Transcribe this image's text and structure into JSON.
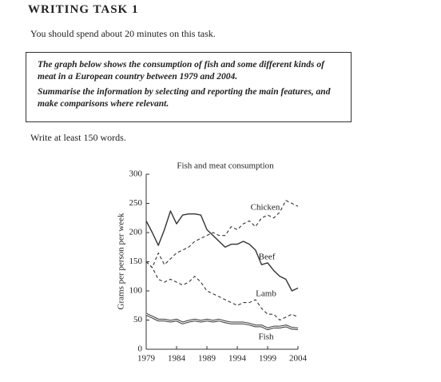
{
  "header": {
    "title": "WRITING TASK 1",
    "instruction": "You should spend about 20 minutes on this task."
  },
  "task": {
    "description": "The graph below shows the consumption of fish and some different kinds of meat in a European country between 1979 and 2004.",
    "instruction": "Summarise the information by selecting and reporting the main features, and make comparisons where relevant."
  },
  "footer": "Write at least 150 words.",
  "chart_data": {
    "type": "line",
    "title": "Fish and meat consumption",
    "y_label": "Grams per person per week",
    "x": [
      1979,
      1980,
      1981,
      1982,
      1983,
      1984,
      1985,
      1986,
      1987,
      1988,
      1989,
      1990,
      1991,
      1992,
      1993,
      1994,
      1995,
      1996,
      1997,
      1998,
      1999,
      2000,
      2001,
      2002,
      2003,
      2004
    ],
    "xlim": [
      1979,
      2004
    ],
    "xticks": [
      1979,
      1984,
      1989,
      1994,
      1999,
      2004
    ],
    "ylim": [
      0,
      300
    ],
    "yticks": [
      0,
      50,
      100,
      150,
      200,
      250,
      300
    ],
    "series": [
      {
        "name": "Chicken",
        "color": "#333333",
        "style": "dashed",
        "values": [
          150,
          140,
          165,
          145,
          155,
          165,
          170,
          175,
          185,
          190,
          195,
          200,
          195,
          195,
          210,
          205,
          215,
          220,
          210,
          225,
          230,
          225,
          235,
          255,
          250,
          245
        ]
      },
      {
        "name": "Beef",
        "color": "#333333",
        "style": "solid",
        "values": [
          220,
          200,
          178,
          205,
          237,
          215,
          230,
          232,
          232,
          230,
          205,
          195,
          185,
          175,
          180,
          180,
          185,
          180,
          170,
          145,
          148,
          135,
          125,
          120,
          100,
          105
        ]
      },
      {
        "name": "Lamb",
        "color": "#333333",
        "style": "dashed",
        "values": [
          150,
          140,
          120,
          115,
          120,
          115,
          110,
          115,
          125,
          115,
          100,
          95,
          90,
          85,
          80,
          75,
          80,
          80,
          85,
          70,
          60,
          60,
          50,
          55,
          60,
          55
        ]
      },
      {
        "name": "Fish",
        "color": "#333333",
        "style": "double",
        "values": [
          60,
          55,
          50,
          50,
          48,
          50,
          45,
          48,
          50,
          48,
          50,
          48,
          50,
          47,
          45,
          45,
          45,
          43,
          40,
          40,
          35,
          38,
          38,
          40,
          36,
          35
        ]
      }
    ]
  }
}
